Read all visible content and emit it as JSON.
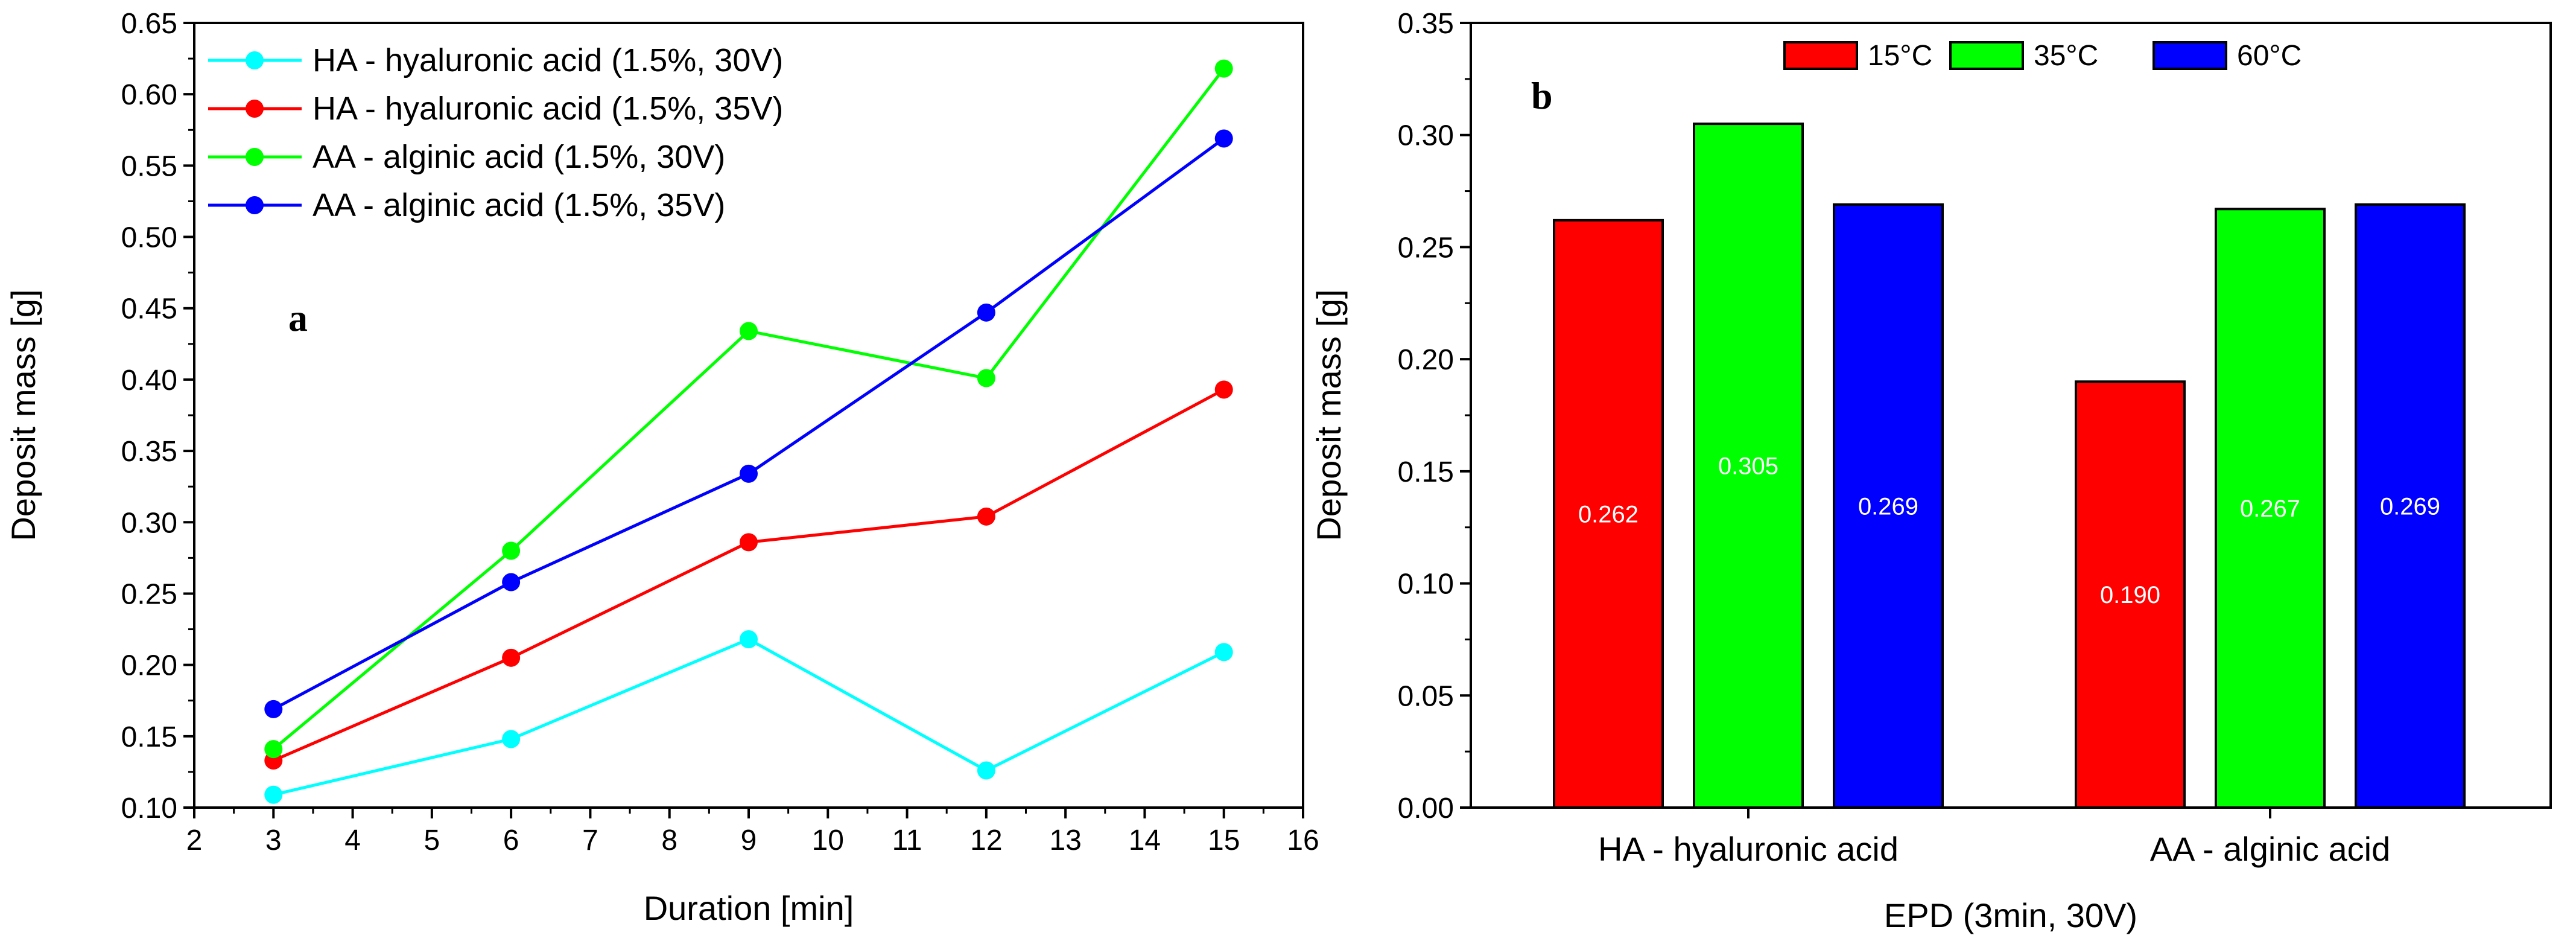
{
  "chart_data": [
    {
      "type": "line",
      "panel_label": "a",
      "xlabel": "Duration [min]",
      "ylabel": "Deposit mass [g]",
      "xlim": [
        2,
        16
      ],
      "ylim": [
        0.1,
        0.65
      ],
      "x_ticks": [
        2,
        3,
        4,
        5,
        6,
        7,
        8,
        9,
        10,
        11,
        12,
        13,
        14,
        15,
        16
      ],
      "y_ticks": [
        0.1,
        0.15,
        0.2,
        0.25,
        0.3,
        0.35,
        0.4,
        0.45,
        0.5,
        0.55,
        0.6,
        0.65
      ],
      "x_tick_labels": [
        "2",
        "3",
        "4",
        "5",
        "6",
        "7",
        "8",
        "9",
        "10",
        "11",
        "12",
        "13",
        "14",
        "15",
        "16"
      ],
      "y_tick_labels": [
        "0.10",
        "0.15",
        "0.20",
        "0.25",
        "0.30",
        "0.35",
        "0.40",
        "0.45",
        "0.50",
        "0.55",
        "0.60",
        "0.65"
      ],
      "legend_position": "top-left",
      "x": [
        3,
        6,
        9,
        12,
        15
      ],
      "series": [
        {
          "name": "HA - hyaluronic acid (1.5%, 30V)",
          "color": "#00ffff",
          "values": [
            0.109,
            0.148,
            0.218,
            0.126,
            0.209
          ]
        },
        {
          "name": "HA - hyaluronic acid (1.5%, 35V)",
          "color": "#ff0000",
          "values": [
            0.133,
            0.205,
            0.286,
            0.304,
            0.393
          ]
        },
        {
          "name": "AA - alginic acid (1.5%, 30V)",
          "color": "#00ff00",
          "values": [
            0.141,
            0.28,
            0.434,
            0.401,
            0.618
          ]
        },
        {
          "name": "AA - alginic acid (1.5%, 35V)",
          "color": "#0000ff",
          "values": [
            0.169,
            0.258,
            0.334,
            0.447,
            0.569
          ]
        }
      ]
    },
    {
      "type": "bar",
      "panel_label": "b",
      "xlabel": "EPD (3min, 30V)",
      "ylabel": "Deposit mass [g]",
      "ylim": [
        0,
        0.35
      ],
      "y_ticks": [
        0,
        0.05,
        0.1,
        0.15,
        0.2,
        0.25,
        0.3,
        0.35
      ],
      "y_tick_labels": [
        "0.00",
        "0.05",
        "0.10",
        "0.15",
        "0.20",
        "0.25",
        "0.30",
        "0.35"
      ],
      "legend_position": "top-center",
      "categories": [
        "HA - hyaluronic acid",
        "AA - alginic acid"
      ],
      "series": [
        {
          "name": "15°C",
          "color": "#ff0000",
          "values": [
            0.262,
            0.19
          ],
          "labels": [
            "0.262",
            "0.190"
          ]
        },
        {
          "name": "35°C",
          "color": "#00ff00",
          "values": [
            0.305,
            0.267
          ],
          "labels": [
            "0.305",
            "0.267"
          ]
        },
        {
          "name": "60°C",
          "color": "#0000ff",
          "values": [
            0.269,
            0.269
          ],
          "labels": [
            "0.269",
            "0.269"
          ]
        }
      ]
    }
  ]
}
